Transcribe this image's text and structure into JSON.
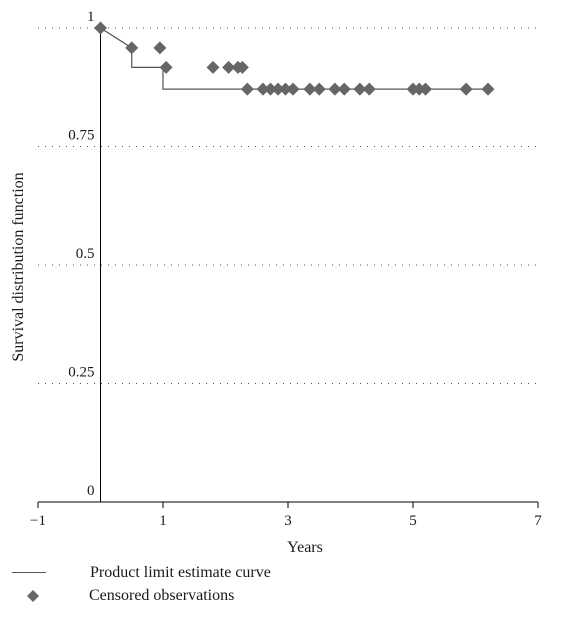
{
  "chart_data": {
    "type": "line",
    "title": "",
    "xlabel": "Years",
    "ylabel": "Survival distribution function",
    "xlim": [
      -1,
      7
    ],
    "ylim": [
      0,
      1
    ],
    "x_ticks": [
      -1,
      1,
      3,
      5,
      7
    ],
    "x_tick_labels": [
      "−1",
      "1",
      "3",
      "5",
      "7"
    ],
    "y_ticks": [
      0,
      0.25,
      0.5,
      0.75,
      1
    ],
    "y_tick_labels": [
      "0",
      "0.25",
      "0.5",
      "0.75",
      "1"
    ],
    "grid": "horizontal-dotted",
    "legend_placement": "bottom-left",
    "colors": {
      "line": "#555555",
      "marker": "#666666",
      "axis": "#000000",
      "grid": "#555555"
    },
    "series": [
      {
        "name": "Product limit estimate curve",
        "kind": "step",
        "x": [
          0,
          0.5,
          1.0,
          2.35,
          6.2
        ],
        "y": [
          1.0,
          0.958,
          0.917,
          0.871,
          0.871
        ]
      },
      {
        "name": "Censored observations",
        "kind": "markers",
        "marker": "diamond",
        "points": [
          [
            0.0,
            1.0
          ],
          [
            0.5,
            0.958
          ],
          [
            0.95,
            0.958
          ],
          [
            1.05,
            0.917
          ],
          [
            1.8,
            0.917
          ],
          [
            2.05,
            0.917
          ],
          [
            2.2,
            0.917
          ],
          [
            2.27,
            0.917
          ],
          [
            2.35,
            0.871
          ],
          [
            2.6,
            0.871
          ],
          [
            2.72,
            0.871
          ],
          [
            2.84,
            0.871
          ],
          [
            2.96,
            0.871
          ],
          [
            3.08,
            0.871
          ],
          [
            3.35,
            0.871
          ],
          [
            3.5,
            0.871
          ],
          [
            3.75,
            0.871
          ],
          [
            3.9,
            0.871
          ],
          [
            4.15,
            0.871
          ],
          [
            4.3,
            0.871
          ],
          [
            5.0,
            0.871
          ],
          [
            5.1,
            0.871
          ],
          [
            5.2,
            0.871
          ],
          [
            5.85,
            0.871
          ],
          [
            6.2,
            0.871
          ]
        ]
      }
    ]
  },
  "legend": {
    "items": [
      {
        "label": "Product limit estimate curve",
        "symbol": "line"
      },
      {
        "label": "Censored observations",
        "symbol": "diamond"
      }
    ]
  }
}
